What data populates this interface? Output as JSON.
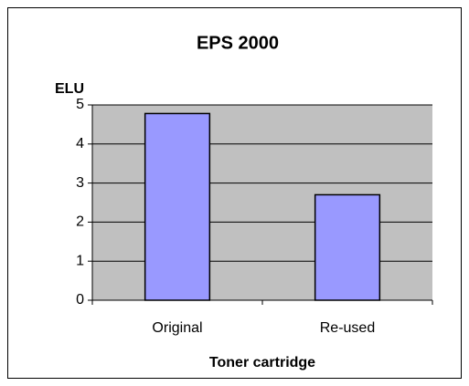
{
  "chart_data": {
    "type": "bar",
    "title": "EPS 2000",
    "y_label": "ELU",
    "x_label": "Toner cartridge",
    "categories": [
      "Original",
      "Re-used"
    ],
    "values": [
      4.78,
      2.7
    ],
    "color": "#9999ff",
    "ylim": [
      0,
      5
    ],
    "yticks": [
      0,
      1,
      2,
      3,
      4,
      5
    ],
    "grid": true,
    "plot_background": "#c0c0c0"
  }
}
